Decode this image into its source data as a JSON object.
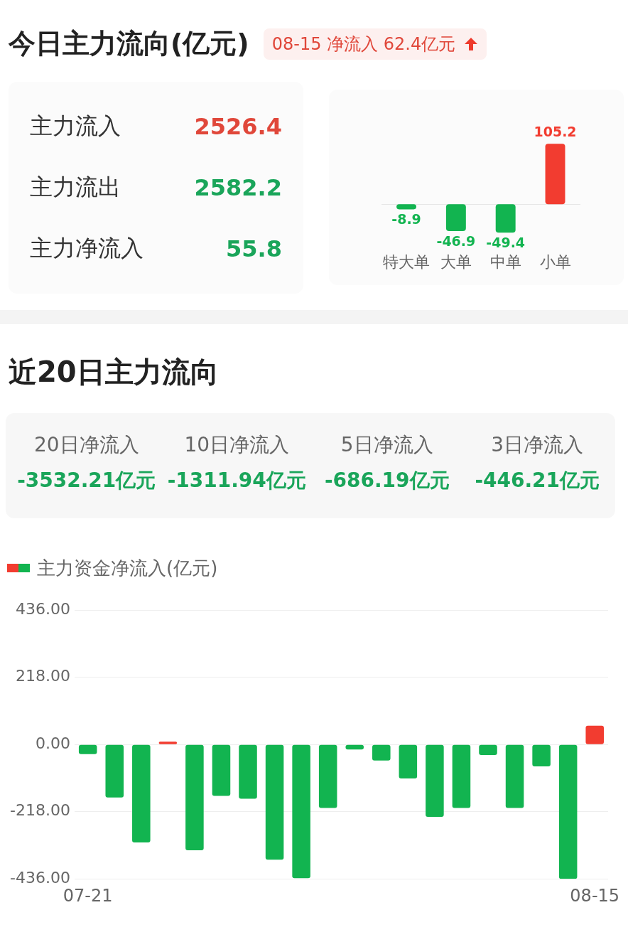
{
  "chart_data": [
    {
      "type": "other",
      "title": "今日主力流向(亿元)",
      "subtitle": "08-15 净流入 62.4亿元",
      "categories": [
        "主力流入",
        "主力流出",
        "主力净流入"
      ],
      "values": [
        2526.4,
        2582.2,
        55.8
      ],
      "data_labels": true
    },
    {
      "type": "bar",
      "categories": [
        "特大单",
        "大单",
        "中单",
        "小单"
      ],
      "values": [
        -8.9,
        -46.9,
        -49.4,
        105.2
      ],
      "colors": [
        "#12b450",
        "#12b450",
        "#12b450",
        "#f23c30"
      ],
      "data_labels": true
    },
    {
      "type": "other",
      "title": "近20日主力流向",
      "categories": [
        "20日净流入",
        "10日净流入",
        "5日净流入",
        "3日净流入"
      ],
      "values": [
        -3532.21,
        -1311.94,
        -686.19,
        -446.21
      ],
      "value_labels": [
        "-3532.21亿元",
        "-1311.94亿元",
        "-686.19亿元",
        "-446.21亿元"
      ]
    },
    {
      "type": "bar",
      "categories": [
        "07-21",
        null,
        null,
        null,
        null,
        null,
        null,
        null,
        null,
        null,
        null,
        null,
        null,
        null,
        null,
        null,
        null,
        null,
        null,
        "08-15"
      ],
      "series": [
        {
          "name": "主力资金净流入(亿元)",
          "values": [
            -31,
            -172,
            -318,
            9,
            -343,
            -167,
            -176,
            -374,
            -434,
            -206,
            -16,
            -52,
            -110,
            -235,
            -206,
            -34,
            -206,
            -71,
            -436,
            61
          ],
          "colors": [
            "#12b450",
            "#12b450",
            "#12b450",
            "#f23c30",
            "#12b450",
            "#12b450",
            "#12b450",
            "#12b450",
            "#12b450",
            "#12b450",
            "#12b450",
            "#12b450",
            "#12b450",
            "#12b450",
            "#12b450",
            "#12b450",
            "#12b450",
            "#12b450",
            "#12b450",
            "#f23c30"
          ]
        }
      ],
      "ylim": [
        -436,
        436
      ],
      "yticks": [
        {
          "value": 436,
          "label": "436.00"
        },
        {
          "value": 218,
          "label": "218.00"
        },
        {
          "value": 0,
          "label": "0.00"
        },
        {
          "value": -218,
          "label": "-218.00"
        },
        {
          "value": -436,
          "label": "-436.00"
        }
      ],
      "grid": "y",
      "legend": "top left"
    }
  ]
}
